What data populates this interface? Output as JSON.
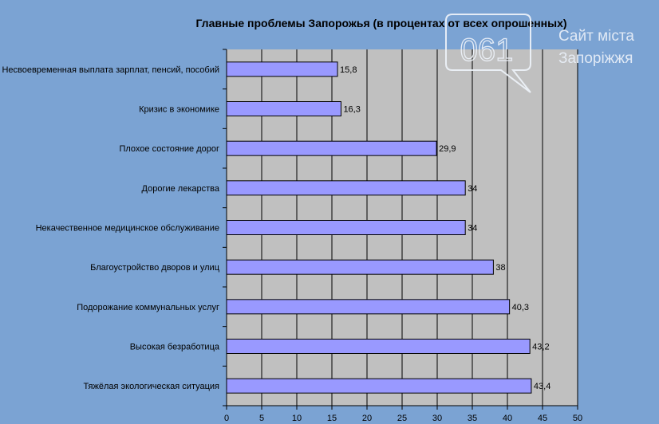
{
  "chart_data": {
    "type": "bar",
    "orientation": "horizontal",
    "title": "Главные проблемы Запорожья (в процентах от всех опрошенных)",
    "xlabel": "",
    "ylabel": "",
    "categories": [
      "Несвоевременная выплата зарплат, пенсий, пособий",
      "Кризис в экономике",
      "Плохое состояние дорог",
      "Дорогие лекарства",
      "Некачественное медицинское обслуживание",
      "Благоустройство дворов и улиц",
      "Подорожание коммунальных услуг",
      "Высокая безработица",
      "Тяжёлая экологическая ситуация"
    ],
    "values": [
      15.8,
      16.3,
      29.9,
      34,
      34,
      38,
      40.3,
      43.2,
      43.4
    ],
    "value_labels": [
      "15,8",
      "16,3",
      "29,9",
      "34",
      "34",
      "38",
      "40,3",
      "43,2",
      "43,4"
    ],
    "xlim": [
      0,
      50
    ],
    "xticks": [
      0,
      5,
      10,
      15,
      20,
      25,
      30,
      35,
      40,
      45,
      50
    ],
    "grid": true,
    "legend": "none",
    "colors": {
      "background": "#7ba3d3",
      "plot_area": "#c0c0c0",
      "bar_fill": "#9999ff",
      "bar_stroke": "#000000",
      "gridline": "#000000"
    }
  },
  "watermark": {
    "digits": "061",
    "line1": "Сайт міста",
    "line2": "Запоріжжя"
  }
}
